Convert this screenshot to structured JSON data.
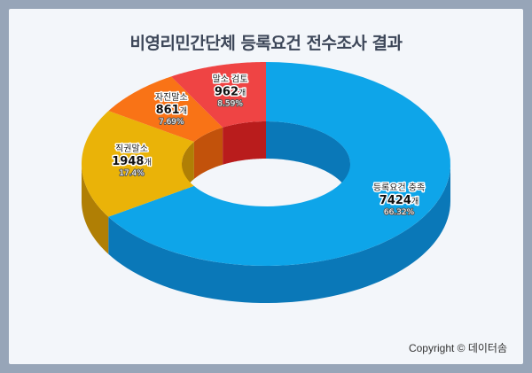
{
  "title": "비영리민간단체 등록요건 전수조사 결과",
  "copyright": "Copyright © 데이터솜",
  "chart_data": {
    "type": "pie",
    "variant": "donut-3d",
    "title": "비영리민간단체 등록요건 전수조사 결과",
    "unit": "개",
    "slices": [
      {
        "label": "등록요건 충족",
        "value": 7424,
        "percent": "66.32%",
        "color": "#0ea5e9",
        "side_color": "#0a78b8"
      },
      {
        "label": "직권말소",
        "value": 1948,
        "percent": "17.4%",
        "color": "#eab308",
        "side_color": "#b07f05"
      },
      {
        "label": "자진말소",
        "value": 861,
        "percent": "7.69%",
        "color": "#f97316",
        "side_color": "#c2520b"
      },
      {
        "label": "말소 검토",
        "value": 962,
        "percent": "8.59%",
        "color": "#ef4444",
        "side_color": "#b91c1c"
      }
    ]
  }
}
